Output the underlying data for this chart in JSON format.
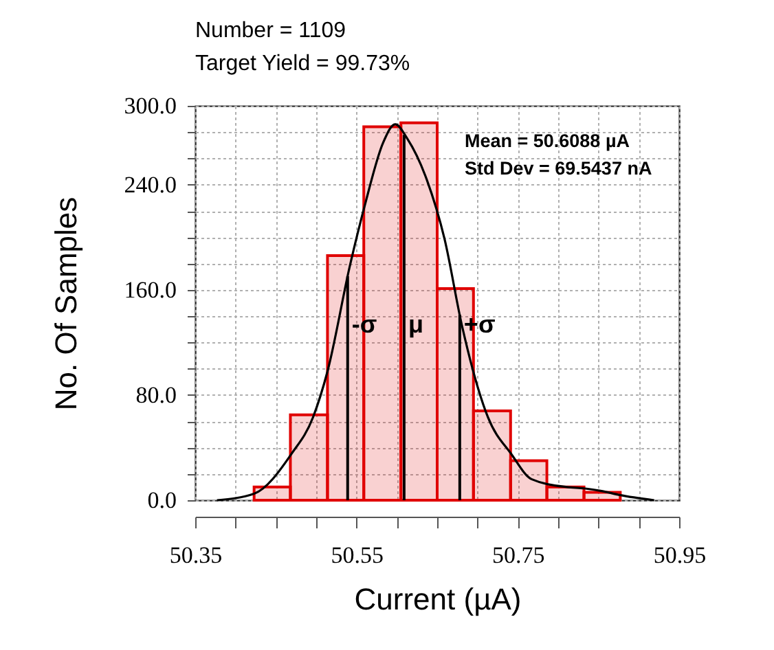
{
  "chart_data": {
    "type": "histogram",
    "title": "Number = 1109",
    "subtitle": "Target Yield = 99.73%",
    "xlabel": "Current (µA)",
    "ylabel": "No. Of Samples",
    "bins": [
      50.423,
      50.468,
      50.514,
      50.559,
      50.605,
      50.65,
      50.695,
      50.741,
      50.786,
      50.832,
      50.877
    ],
    "series": [
      {
        "color": "#e00000",
        "values": [
          10,
          65,
          186,
          284,
          287,
          161,
          68,
          30,
          10,
          6
        ]
      },
      {
        "type": "line",
        "color": "#000000",
        "x": [
          50.377,
          50.423,
          50.469,
          50.496,
          50.514,
          50.542,
          50.561,
          50.583,
          50.598,
          50.613,
          50.637,
          50.659,
          50.681,
          50.713,
          50.742,
          50.767,
          50.811,
          50.832,
          50.854,
          50.876,
          50.919
        ],
        "values": [
          0,
          5,
          35,
          63,
          98,
          179,
          226,
          272,
          286,
          275,
          244,
          199,
          132,
          63,
          35,
          16,
          10,
          9,
          7,
          4,
          0
        ]
      }
    ],
    "xlim": [
      50.35,
      50.95
    ],
    "xticks": [
      50.35,
      {
        "value": 50.4,
        "label": null
      },
      {
        "value": 50.45,
        "label": null
      },
      {
        "value": 50.5,
        "label": null
      },
      50.55,
      {
        "value": 50.6,
        "label": null
      },
      {
        "value": 50.65,
        "label": null
      },
      {
        "value": 50.7,
        "label": null
      },
      50.75,
      {
        "value": 50.8,
        "label": null
      },
      {
        "value": 50.85,
        "label": null
      },
      {
        "value": 50.9,
        "label": null
      },
      50.95
    ],
    "ylim": [
      0,
      300
    ],
    "yticks": [
      {
        "value": 0,
        "label": "0.0"
      },
      {
        "value": 20,
        "label": null
      },
      {
        "value": 40,
        "label": null
      },
      {
        "value": 60,
        "label": null
      },
      {
        "value": 80,
        "label": "80.0"
      },
      {
        "value": 100,
        "label": null
      },
      {
        "value": 120,
        "label": null
      },
      {
        "value": 140,
        "label": null
      },
      {
        "value": 160,
        "label": "160.0"
      },
      {
        "value": 180,
        "label": null
      },
      {
        "value": 200,
        "label": null
      },
      {
        "value": 220,
        "label": null
      },
      {
        "value": 240,
        "label": "240.0"
      },
      {
        "value": 260,
        "label": null
      },
      {
        "value": 280,
        "label": null
      },
      {
        "value": 300,
        "label": "300.0"
      }
    ],
    "grid": true,
    "ref_lines": [
      {
        "axis": "x",
        "value": 50.539,
        "label": "-σ",
        "color": "#000000"
      },
      {
        "axis": "x",
        "value": 50.609,
        "label": "μ",
        "color": "#000000"
      },
      {
        "axis": "x",
        "value": 50.678,
        "label": "+σ",
        "color": "#000000"
      }
    ],
    "annotations": [
      "Mean = 50.6088 µA",
      "Std Dev = 69.5437 nA"
    ]
  }
}
